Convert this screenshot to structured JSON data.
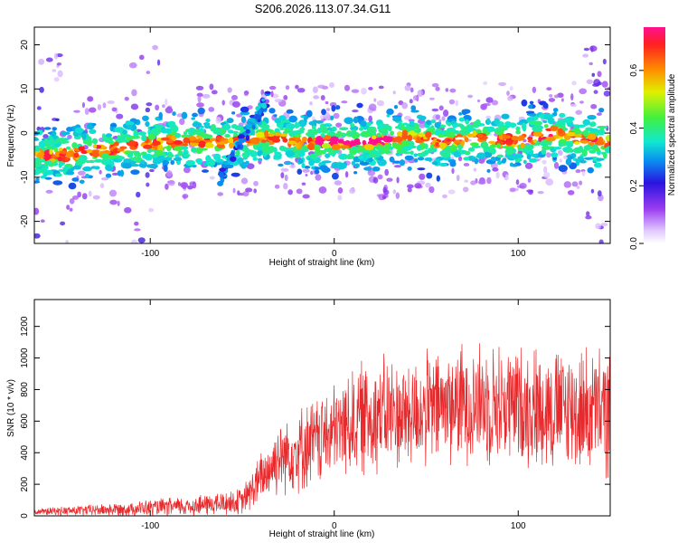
{
  "title": "S206.2026.113.07.34.G11",
  "colors": {
    "axis": "#000000",
    "snr_line": "#e8282a",
    "background": "#ffffff"
  },
  "chart_data": [
    {
      "type": "heatmap",
      "name": "spectrogram",
      "xlabel": "Height of straight line (km)",
      "ylabel": "Frequency (Hz)",
      "xlim": [
        -163,
        150
      ],
      "ylim": [
        -25,
        24
      ],
      "xticks": [
        -100,
        0,
        100
      ],
      "xtick_labels": [
        "-100",
        "0",
        "100"
      ],
      "yticks": [
        -20,
        -10,
        0,
        10,
        20
      ],
      "ytick_labels": [
        "-20",
        "-10",
        "0",
        "10",
        "20"
      ],
      "ridge": {
        "description_values_x_km": [
          -150,
          -130,
          -110,
          -90,
          -70,
          -50,
          -40,
          -20,
          0,
          20,
          40,
          60,
          80,
          100,
          120,
          140
        ],
        "frequency_hz": [
          -5,
          -4,
          -3,
          -2,
          -2,
          -2,
          -1,
          -2,
          -2,
          -2,
          -1,
          -2,
          -1,
          -2,
          0,
          -2
        ]
      },
      "colorbar": {
        "label": "Normalized spectral amplitude",
        "range": [
          0.0,
          0.75
        ],
        "ticks": [
          0.0,
          0.2,
          0.4,
          0.6
        ],
        "tick_labels": [
          "0.0",
          "0.2",
          "0.4",
          "0.6"
        ]
      }
    },
    {
      "type": "line",
      "name": "snr",
      "xlabel": "Height of straight line (km)",
      "ylabel": "SNR (10 * v/v)",
      "xlim": [
        -163,
        150
      ],
      "ylim": [
        0,
        1370
      ],
      "xticks": [
        -100,
        0,
        100
      ],
      "xtick_labels": [
        "-100",
        "0",
        "100"
      ],
      "yticks": [
        0,
        200,
        400,
        600,
        800,
        1000,
        1200
      ],
      "ytick_labels": [
        "0",
        "200",
        "400",
        "600",
        "800",
        "1000",
        "1200"
      ],
      "envelope": {
        "x": [
          -163,
          -120,
          -80,
          -50,
          -40,
          -30,
          -20,
          -10,
          0,
          10,
          20,
          30,
          40,
          60,
          80,
          100,
          120,
          140,
          150
        ],
        "mean": [
          25,
          40,
          60,
          90,
          230,
          380,
          420,
          470,
          530,
          600,
          640,
          650,
          640,
          700,
          720,
          700,
          680,
          660,
          650
        ],
        "spread": [
          20,
          40,
          60,
          80,
          160,
          220,
          250,
          270,
          280,
          320,
          360,
          340,
          330,
          350,
          360,
          360,
          370,
          380,
          380
        ]
      }
    }
  ]
}
